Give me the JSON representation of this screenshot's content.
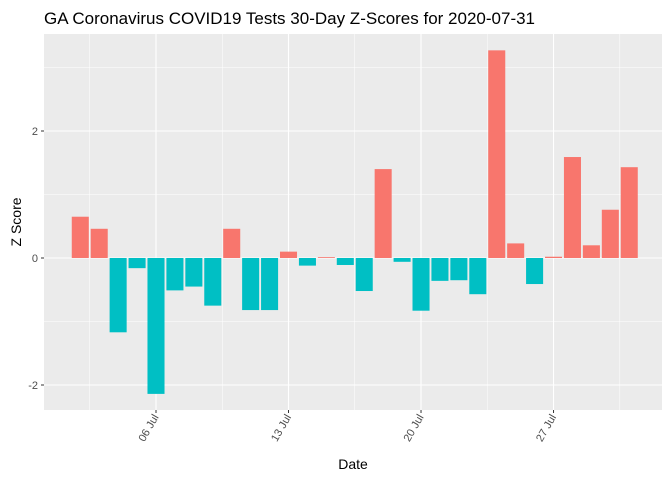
{
  "chart_data": {
    "type": "bar",
    "title": "GA Coronavirus COVID19 Tests 30-Day Z-Scores for 2020-07-31",
    "xlabel": "Date",
    "ylabel": "Z Score",
    "ylim": [
      -2.4,
      3.4
    ],
    "grid": true,
    "legend": "none",
    "colors": {
      "positive": "#f8766d",
      "negative": "#00bfc4",
      "panel": "#ebebeb",
      "grid": "#ffffff"
    },
    "x_ticks": [
      {
        "date": "2020-07-06",
        "label": "06 Jul"
      },
      {
        "date": "2020-07-13",
        "label": "13 Jul"
      },
      {
        "date": "2020-07-20",
        "label": "20 Jul"
      },
      {
        "date": "2020-07-27",
        "label": "27 Jul"
      }
    ],
    "y_ticks": [
      {
        "value": -2,
        "label": "-2"
      },
      {
        "value": 0,
        "label": "0"
      },
      {
        "value": 2,
        "label": "2"
      }
    ],
    "x": [
      "2020-07-02",
      "2020-07-03",
      "2020-07-04",
      "2020-07-05",
      "2020-07-06",
      "2020-07-07",
      "2020-07-08",
      "2020-07-09",
      "2020-07-10",
      "2020-07-11",
      "2020-07-12",
      "2020-07-13",
      "2020-07-14",
      "2020-07-15",
      "2020-07-16",
      "2020-07-17",
      "2020-07-18",
      "2020-07-19",
      "2020-07-20",
      "2020-07-21",
      "2020-07-22",
      "2020-07-23",
      "2020-07-24",
      "2020-07-25",
      "2020-07-26",
      "2020-07-27",
      "2020-07-28",
      "2020-07-29",
      "2020-07-30",
      "2020-07-31"
    ],
    "values": [
      0.65,
      0.46,
      -1.17,
      -0.16,
      -2.14,
      -0.51,
      -0.45,
      -0.75,
      0.46,
      -0.82,
      -0.82,
      0.1,
      -0.12,
      0.0,
      -0.11,
      -0.52,
      1.4,
      -0.06,
      -0.83,
      -0.36,
      -0.35,
      -0.57,
      3.27,
      0.23,
      -0.41,
      0.02,
      1.59,
      0.2,
      0.76,
      1.43
    ]
  }
}
